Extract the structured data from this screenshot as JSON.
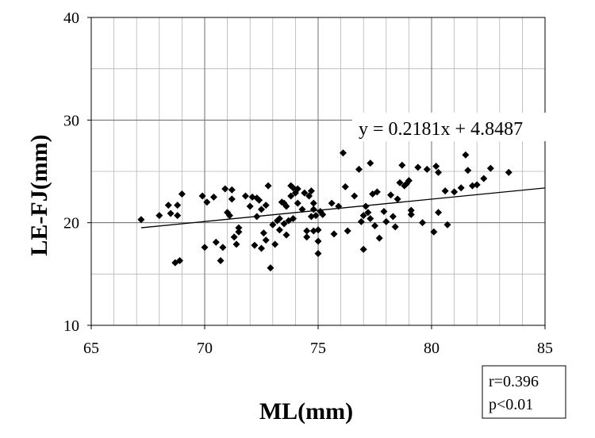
{
  "chart_data": {
    "type": "scatter",
    "xlabel": "ML(mm)",
    "ylabel": "LE-FJ(mm)",
    "xlim": [
      65,
      85
    ],
    "ylim": [
      10,
      40
    ],
    "x_ticks": [
      "65",
      "70",
      "75",
      "80",
      "85"
    ],
    "y_ticks": [
      "10",
      "20",
      "30",
      "40"
    ],
    "x_minor_step": 1,
    "y_minor_step": 5,
    "grid": true,
    "trendline": {
      "equation": "y = 0.2181x + 4.8487",
      "slope": 0.2181,
      "intercept": 4.8487,
      "x_range": [
        67.2,
        85.0
      ]
    },
    "stats": {
      "r": "r=0.396",
      "p": "p<0.01"
    },
    "marker_color": "#000000",
    "points": [
      [
        67.2,
        20.3
      ],
      [
        68.0,
        20.7
      ],
      [
        68.4,
        21.7
      ],
      [
        68.5,
        20.9
      ],
      [
        68.7,
        16.1
      ],
      [
        68.8,
        21.7
      ],
      [
        68.9,
        16.3
      ],
      [
        68.8,
        20.7
      ],
      [
        69.0,
        22.8
      ],
      [
        69.9,
        22.6
      ],
      [
        70.0,
        17.6
      ],
      [
        70.1,
        22.0
      ],
      [
        70.4,
        22.5
      ],
      [
        70.5,
        18.1
      ],
      [
        70.7,
        16.3
      ],
      [
        70.8,
        17.6
      ],
      [
        70.9,
        23.3
      ],
      [
        71.0,
        21.0
      ],
      [
        71.1,
        20.7
      ],
      [
        71.2,
        23.2
      ],
      [
        71.2,
        22.3
      ],
      [
        71.3,
        18.6
      ],
      [
        71.4,
        17.9
      ],
      [
        71.5,
        19.1
      ],
      [
        71.5,
        19.5
      ],
      [
        71.8,
        22.6
      ],
      [
        72.0,
        21.6
      ],
      [
        72.1,
        22.5
      ],
      [
        72.2,
        17.8
      ],
      [
        72.3,
        20.6
      ],
      [
        72.3,
        22.4
      ],
      [
        72.4,
        22.2
      ],
      [
        72.5,
        21.3
      ],
      [
        72.5,
        17.5
      ],
      [
        72.6,
        19.0
      ],
      [
        72.7,
        21.7
      ],
      [
        72.7,
        18.3
      ],
      [
        72.8,
        23.6
      ],
      [
        72.9,
        15.6
      ],
      [
        73.0,
        19.8
      ],
      [
        73.1,
        17.9
      ],
      [
        73.2,
        20.2
      ],
      [
        73.3,
        20.4
      ],
      [
        73.3,
        19.3
      ],
      [
        73.4,
        22.0
      ],
      [
        73.5,
        19.9
      ],
      [
        73.5,
        21.9
      ],
      [
        73.6,
        18.8
      ],
      [
        73.6,
        21.6
      ],
      [
        73.7,
        20.2
      ],
      [
        73.8,
        23.6
      ],
      [
        73.8,
        22.6
      ],
      [
        73.9,
        20.4
      ],
      [
        73.9,
        23.4
      ],
      [
        74.0,
        22.9
      ],
      [
        74.1,
        21.9
      ],
      [
        74.1,
        23.3
      ],
      [
        74.3,
        21.3
      ],
      [
        74.4,
        22.9
      ],
      [
        74.5,
        18.6
      ],
      [
        74.5,
        19.2
      ],
      [
        74.6,
        22.6
      ],
      [
        74.7,
        20.6
      ],
      [
        74.7,
        23.1
      ],
      [
        74.8,
        21.9
      ],
      [
        74.8,
        19.2
      ],
      [
        74.8,
        21.3
      ],
      [
        74.9,
        20.7
      ],
      [
        75.0,
        17.0
      ],
      [
        75.0,
        18.2
      ],
      [
        75.0,
        19.3
      ],
      [
        75.1,
        21.1
      ],
      [
        75.2,
        20.8
      ],
      [
        75.6,
        21.9
      ],
      [
        75.7,
        18.9
      ],
      [
        75.9,
        21.6
      ],
      [
        76.1,
        26.8
      ],
      [
        76.2,
        23.5
      ],
      [
        76.3,
        19.2
      ],
      [
        76.6,
        22.6
      ],
      [
        76.8,
        25.2
      ],
      [
        76.9,
        20.1
      ],
      [
        77.0,
        20.7
      ],
      [
        77.0,
        17.4
      ],
      [
        77.1,
        21.6
      ],
      [
        77.2,
        21.0
      ],
      [
        77.3,
        20.4
      ],
      [
        77.3,
        25.8
      ],
      [
        77.4,
        22.8
      ],
      [
        77.5,
        19.7
      ],
      [
        77.6,
        23.0
      ],
      [
        77.7,
        18.5
      ],
      [
        77.9,
        21.1
      ],
      [
        78.0,
        20.1
      ],
      [
        78.2,
        22.7
      ],
      [
        78.3,
        20.6
      ],
      [
        78.4,
        19.6
      ],
      [
        78.5,
        22.3
      ],
      [
        78.6,
        23.9
      ],
      [
        78.7,
        25.6
      ],
      [
        78.8,
        23.6
      ],
      [
        78.9,
        23.8
      ],
      [
        79.0,
        24.1
      ],
      [
        79.1,
        20.8
      ],
      [
        79.1,
        21.2
      ],
      [
        79.4,
        25.4
      ],
      [
        79.6,
        20.0
      ],
      [
        79.8,
        25.2
      ],
      [
        80.1,
        19.1
      ],
      [
        80.2,
        25.5
      ],
      [
        80.3,
        24.9
      ],
      [
        80.3,
        21.0
      ],
      [
        80.6,
        23.1
      ],
      [
        80.7,
        19.8
      ],
      [
        81.0,
        23.0
      ],
      [
        81.3,
        23.4
      ],
      [
        81.5,
        26.6
      ],
      [
        81.6,
        25.1
      ],
      [
        81.8,
        23.6
      ],
      [
        82.0,
        23.7
      ],
      [
        82.3,
        24.3
      ],
      [
        82.6,
        25.3
      ],
      [
        83.4,
        24.9
      ]
    ]
  }
}
